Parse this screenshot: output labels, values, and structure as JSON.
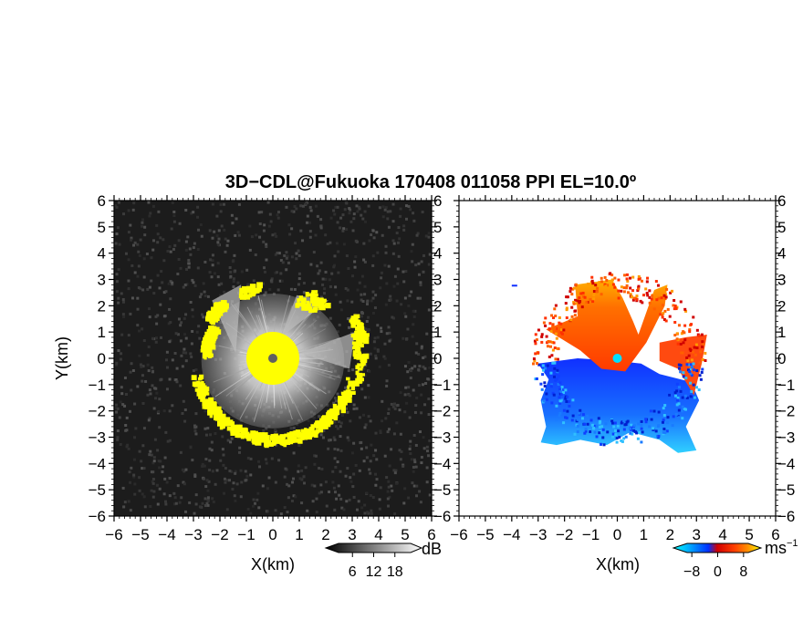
{
  "title": "3D−CDL@Fukuoka 170408 011058 PPI EL=10.0º",
  "chart_data": [
    {
      "type": "heatmap",
      "panel": "reflectivity",
      "xlabel": "X(km)",
      "ylabel": "Y(km)",
      "xlim": [
        -6,
        6
      ],
      "ylim": [
        -6,
        6
      ],
      "xticks": [
        "−6",
        "−5",
        "−4",
        "−3",
        "−2",
        "−1",
        "0",
        "1",
        "2",
        "3",
        "4",
        "5",
        "6"
      ],
      "yticks": [
        "−6",
        "−5",
        "−4",
        "−3",
        "−2",
        "−1",
        "0",
        "1",
        "2",
        "3",
        "4",
        "5",
        "6"
      ],
      "background": "#1a1a1a",
      "echo_color": "#ffff00",
      "range_ring_km": 3,
      "center_blob_radius_km": 1.0,
      "colorbar": {
        "unit": "dB",
        "ticks": [
          "6",
          "12",
          "18"
        ],
        "range": [
          0,
          24
        ]
      }
    },
    {
      "type": "heatmap",
      "panel": "doppler_velocity",
      "xlabel": "X(km)",
      "ylabel": "",
      "xlim": [
        -6,
        6
      ],
      "ylim": [
        -6,
        6
      ],
      "xticks": [
        "−6",
        "−5",
        "−4",
        "−3",
        "−2",
        "−1",
        "0",
        "1",
        "2",
        "3",
        "4",
        "5",
        "6"
      ],
      "yticks": [
        "−6",
        "−5",
        "−4",
        "−3",
        "−2",
        "−1",
        "0",
        "1",
        "2",
        "3",
        "4",
        "5",
        "6"
      ],
      "background": "#ffffff",
      "north_sector_velocity_ms": 6,
      "south_sector_velocity_ms": -5,
      "colorbar": {
        "unit": "ms",
        "unit_sup": "−1",
        "ticks": [
          "−8",
          "0",
          "8"
        ],
        "range": [
          -12,
          12
        ]
      }
    }
  ]
}
